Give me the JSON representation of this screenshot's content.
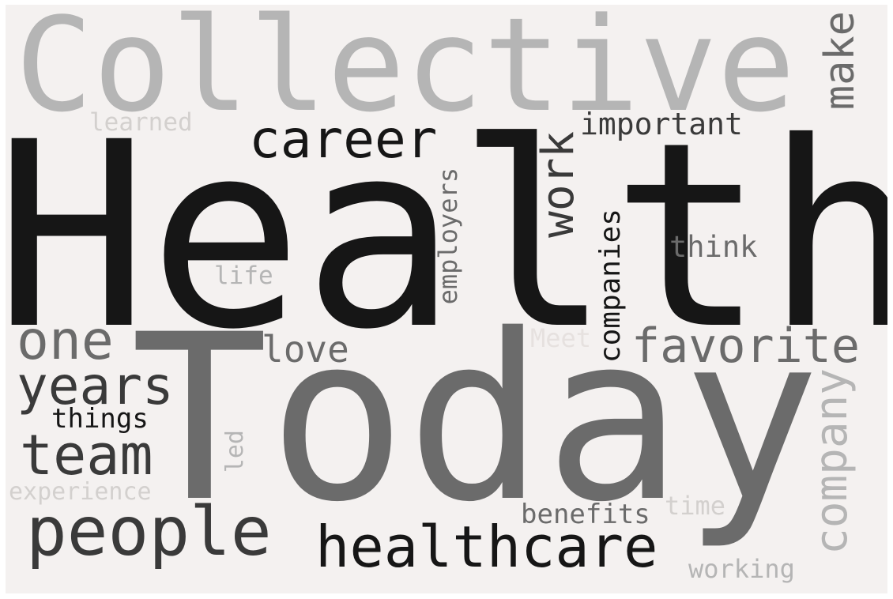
{
  "words": {
    "health": "Health",
    "today": "Today",
    "collective": "Collective",
    "career": "career",
    "make": "make",
    "work": "work",
    "important": "important",
    "learned": "learned",
    "employers": "employers",
    "companies": "companies",
    "think": "think",
    "life": "life",
    "one": "one",
    "love": "love",
    "favorite": "favorite",
    "years": "years",
    "meet": "Meet",
    "things": "things",
    "team": "team",
    "led": "led",
    "company": "company",
    "experience": "experience",
    "time": "time",
    "benefits": "benefits",
    "people": "people",
    "healthcare": "healthcare",
    "working": "working"
  },
  "colors": {
    "background": "#f4f1f0",
    "black": "#161616",
    "dark_gray": "#3a3a3a",
    "mid_gray": "#6b6b6b",
    "light_gray": "#b5b5b5",
    "faint_gray": "#d3d0ce"
  }
}
